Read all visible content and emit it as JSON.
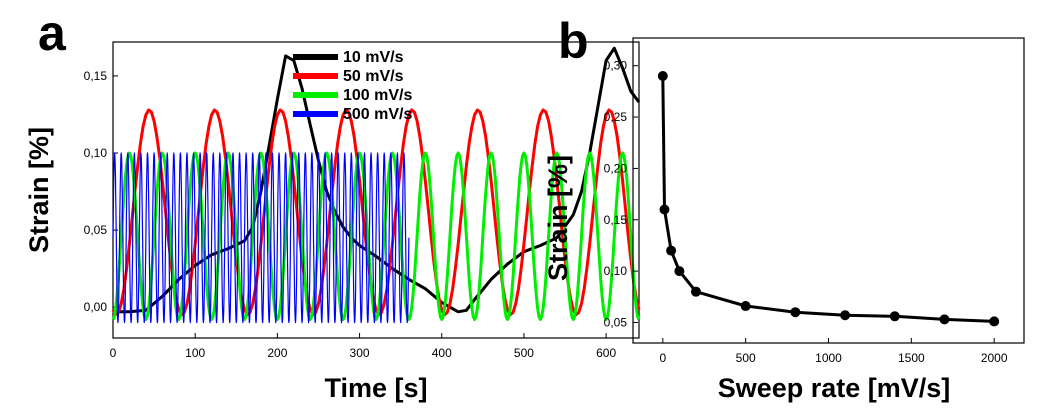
{
  "chart_data": [
    {
      "panel_label": "a",
      "type": "line",
      "xlabel": "Time [s]",
      "ylabel": "Strain [%]",
      "xlim": [
        0,
        640
      ],
      "ylim": [
        -0.02,
        0.172
      ],
      "x_ticks": [
        0,
        100,
        200,
        300,
        400,
        500,
        600
      ],
      "y_ticks": [
        0.0,
        0.05,
        0.1,
        0.15
      ],
      "x_tick_labels": [
        "0",
        "100",
        "200",
        "300",
        "400",
        "500",
        "600"
      ],
      "y_tick_labels": [
        "0,00",
        "0,05",
        "0,10",
        "0,15"
      ],
      "legend_position": "top-right",
      "series": [
        {
          "name": "10 mV/s",
          "color": "#000000",
          "x": [
            0,
            20,
            40,
            60,
            80,
            100,
            120,
            140,
            160,
            170,
            180,
            190,
            200,
            210,
            220,
            230,
            240,
            250,
            260,
            270,
            280,
            290,
            300,
            320,
            340,
            360,
            380,
            400,
            410,
            420,
            430,
            440,
            460,
            480,
            500,
            520,
            540,
            560,
            570,
            580,
            590,
            600,
            610,
            620,
            630,
            640
          ],
          "y": [
            -0.003,
            -0.003,
            -0.002,
            0.007,
            0.018,
            0.027,
            0.034,
            0.038,
            0.043,
            0.052,
            0.075,
            0.105,
            0.135,
            0.163,
            0.16,
            0.142,
            0.118,
            0.095,
            0.075,
            0.062,
            0.052,
            0.045,
            0.04,
            0.033,
            0.025,
            0.018,
            0.012,
            0.003,
            0.0,
            -0.003,
            -0.002,
            0.005,
            0.018,
            0.028,
            0.036,
            0.04,
            0.045,
            0.06,
            0.075,
            0.1,
            0.13,
            0.16,
            0.168,
            0.155,
            0.14,
            0.133
          ]
        },
        {
          "name": "50 mV/s",
          "color": "#ff0000",
          "waveform": "sine",
          "x_range": [
            0,
            640
          ],
          "period_s": 80,
          "peak_time_s": 44,
          "min": -0.005,
          "max": 0.128
        },
        {
          "name": "100 mV/s",
          "color": "#00ee00",
          "waveform": "sine",
          "x_range": [
            0,
            640
          ],
          "period_s": 40,
          "peak_time_s": 20,
          "min": -0.008,
          "max": 0.1
        },
        {
          "name": "500 mV/s",
          "color": "#0000ff",
          "waveform": "sine",
          "x_range": [
            0,
            360
          ],
          "period_s": 8,
          "peak_time_s": 2,
          "min": -0.01,
          "max": 0.1
        }
      ]
    },
    {
      "panel_label": "b",
      "type": "line",
      "xlabel": "Sweep rate [mV/s]",
      "ylabel": "Strain [%]",
      "xlim": [
        -180,
        2180
      ],
      "ylim": [
        0.03,
        0.327
      ],
      "x_ticks": [
        0,
        500,
        1000,
        1500,
        2000
      ],
      "y_ticks": [
        0.05,
        0.1,
        0.15,
        0.2,
        0.25,
        0.3
      ],
      "x_tick_labels": [
        "0",
        "500",
        "1000",
        "1500",
        "2000"
      ],
      "y_tick_labels": [
        "0,05",
        "0,10",
        "0,15",
        "0,20",
        "0,25",
        "0,30"
      ],
      "markers": true,
      "series": [
        {
          "color": "#000000",
          "x": [
            0,
            10,
            50,
            100,
            200,
            500,
            800,
            1100,
            1400,
            1700,
            2000
          ],
          "y": [
            0.29,
            0.16,
            0.12,
            0.1,
            0.08,
            0.066,
            0.06,
            0.057,
            0.056,
            0.053,
            0.051
          ]
        }
      ]
    }
  ]
}
